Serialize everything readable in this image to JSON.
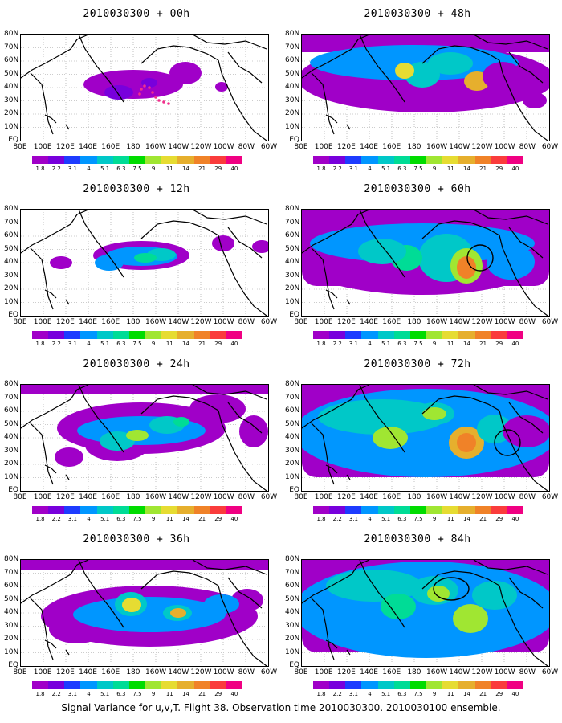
{
  "lat_labels": [
    "80N",
    "70N",
    "60N",
    "50N",
    "40N",
    "30N",
    "20N",
    "10N",
    "EQ"
  ],
  "lon_labels": [
    "80E",
    "100E",
    "120E",
    "140E",
    "160E",
    "180",
    "160W",
    "140W",
    "120W",
    "100W",
    "80W",
    "60W"
  ],
  "colorbar": {
    "labels": [
      "1.8",
      "2.2",
      "3.1",
      "4",
      "5.1",
      "6.3",
      "7.5",
      "9",
      "11",
      "14",
      "21",
      "29",
      "40"
    ],
    "colors": [
      "#a000c8",
      "#7800dc",
      "#1e3cff",
      "#0096ff",
      "#00c8c8",
      "#00dc96",
      "#00dc00",
      "#a0e632",
      "#e6dc32",
      "#e6af2d",
      "#f08228",
      "#fa3c3c",
      "#f00082"
    ]
  },
  "panels": [
    {
      "title": "2010030300 + 00h"
    },
    {
      "title": "2010030300 + 12h"
    },
    {
      "title": "2010030300 + 24h"
    },
    {
      "title": "2010030300 + 36h"
    },
    {
      "title": "2010030300 + 48h"
    },
    {
      "title": "2010030300 + 60h"
    },
    {
      "title": "2010030300 + 72h"
    },
    {
      "title": "2010030300 + 84h"
    }
  ],
  "caption": "Signal Variance for u,v,T. Flight 38. Observation time 2010030300. 2010030100 ensemble."
}
